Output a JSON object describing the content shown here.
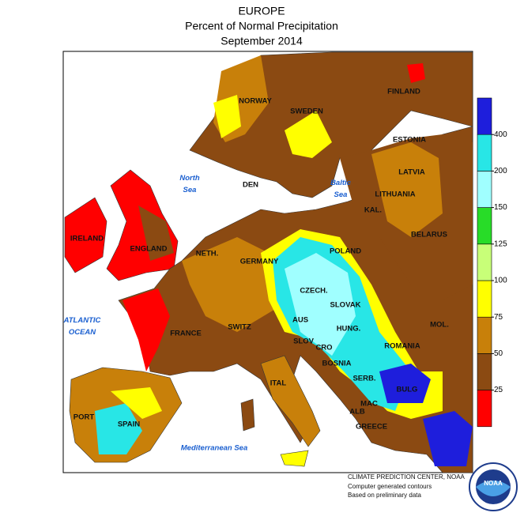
{
  "header": {
    "title": "EUROPE",
    "subtitle": "Percent of Normal Precipitation",
    "period": "September 2014"
  },
  "legend": {
    "ticks": [
      25,
      50,
      75,
      100,
      125,
      150,
      200,
      400
    ],
    "colors": [
      "#ff0000",
      "#8b4a12",
      "#c8800a",
      "#ffff00",
      "#c8ff78",
      "#28dc28",
      "#a0ffff",
      "#28e6e6",
      "#1e1edc"
    ]
  },
  "countries": [
    "NORWAY",
    "SWEDEN",
    "FINLAND",
    "ESTONIA",
    "LATVIA",
    "LITHUANIA",
    "KAL.",
    "BELARUS",
    "POLAND",
    "DEN",
    "IRELAND",
    "ENGLAND",
    "NETH.",
    "GERMANY",
    "CZECH.",
    "SLOVAK",
    "HUNG.",
    "FRANCE",
    "SWITZ",
    "AUS",
    "SLOV",
    "CRO",
    "BOSNIA",
    "ROMANIA",
    "MOL.",
    "SERB.",
    "BULG",
    "MAC",
    "ALB",
    "GREECE",
    "ITAL",
    "PORT",
    "SPAIN"
  ],
  "seas": [
    "North Sea",
    "Baltic Sea",
    "ATLANTIC OCEAN",
    "Mediterranean Sea"
  ],
  "credits": [
    "CLIMATE PREDICTION CENTER, NOAA",
    "Computer generated contours",
    "Based on preliminary data"
  ]
}
